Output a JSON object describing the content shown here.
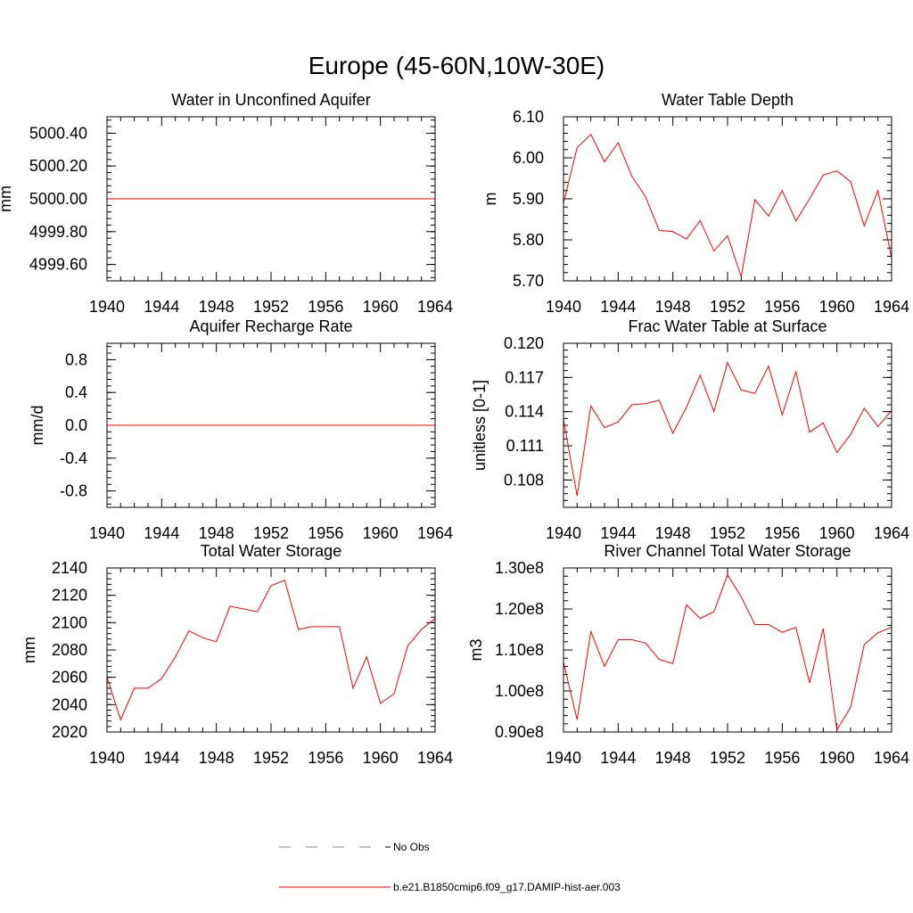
{
  "figure_title": "Europe (45-60N,10W-30E)",
  "legend": [
    {
      "label": "No Obs",
      "color": "#7f7fbf",
      "dash": true
    },
    {
      "label": "b.e21.B1850cmip6.f09_g17.DAMIP-hist-aer.003",
      "color": "#ff0000",
      "dash": false
    }
  ],
  "chart_data": [
    {
      "type": "line",
      "title": "Water in Unconfined Aquifer",
      "xlabel": "",
      "ylabel": "mm",
      "xlim": [
        1940,
        1964
      ],
      "ylim": [
        4999.5,
        5000.5
      ],
      "xticks": [
        1940,
        1944,
        1948,
        1952,
        1956,
        1960,
        1964
      ],
      "xtick_labels": [
        "1940",
        "1944",
        "1948",
        "1952",
        "1956",
        "1960",
        "1964"
      ],
      "yticks": [
        4999.6,
        4999.8,
        5000.0,
        5000.2,
        5000.4
      ],
      "ytick_labels": [
        "4999.60",
        "4999.80",
        "5000.00",
        "5000.20",
        "5000.40"
      ],
      "line_color": "#ff0000",
      "x": [
        1940,
        1964
      ],
      "y": [
        5000.0,
        5000.0
      ]
    },
    {
      "type": "line",
      "title": "Water Table Depth",
      "xlabel": "",
      "ylabel": "m",
      "xlim": [
        1940,
        1964
      ],
      "ylim": [
        5.7,
        6.1
      ],
      "xticks": [
        1940,
        1944,
        1948,
        1952,
        1956,
        1960,
        1964
      ],
      "xtick_labels": [
        "1940",
        "1944",
        "1948",
        "1952",
        "1956",
        "1960",
        "1964"
      ],
      "yticks": [
        5.7,
        5.8,
        5.9,
        6.0,
        6.1
      ],
      "ytick_labels": [
        "5.70",
        "5.80",
        "5.90",
        "6.00",
        "6.10"
      ],
      "line_color": "#ff0000",
      "x": [
        1940,
        1941,
        1942,
        1943,
        1944,
        1945,
        1946,
        1947,
        1948,
        1949,
        1950,
        1951,
        1952,
        1953,
        1954,
        1955,
        1956,
        1957,
        1958,
        1959,
        1960,
        1961,
        1962,
        1963,
        1964
      ],
      "y": [
        5.89,
        6.025,
        6.057,
        5.99,
        6.037,
        5.955,
        5.905,
        5.823,
        5.82,
        5.802,
        5.847,
        5.773,
        5.81,
        5.71,
        5.898,
        5.858,
        5.92,
        5.846,
        5.9,
        5.958,
        5.968,
        5.942,
        5.834,
        5.92,
        5.755
      ]
    },
    {
      "type": "line",
      "title": "Aquifer Recharge Rate",
      "xlabel": "",
      "ylabel": "mm/d",
      "xlim": [
        1940,
        1964
      ],
      "ylim": [
        -1.0,
        1.0
      ],
      "xticks": [
        1940,
        1944,
        1948,
        1952,
        1956,
        1960,
        1964
      ],
      "xtick_labels": [
        "1940",
        "1944",
        "1948",
        "1952",
        "1956",
        "1960",
        "1964"
      ],
      "yticks": [
        -0.8,
        -0.4,
        0.0,
        0.4,
        0.8
      ],
      "ytick_labels": [
        "-0.8",
        "-0.4",
        "0.0",
        "0.4",
        "0.8"
      ],
      "line_color": "#ff0000",
      "x": [
        1940,
        1964
      ],
      "y": [
        0.0,
        0.0
      ]
    },
    {
      "type": "line",
      "title": "Frac Water Table at Surface",
      "xlabel": "",
      "ylabel": "unitless [0-1]",
      "xlim": [
        1940,
        1964
      ],
      "ylim": [
        0.1056,
        0.12
      ],
      "xticks": [
        1940,
        1944,
        1948,
        1952,
        1956,
        1960,
        1964
      ],
      "xtick_labels": [
        "1940",
        "1944",
        "1948",
        "1952",
        "1956",
        "1960",
        "1964"
      ],
      "yticks": [
        0.108,
        0.111,
        0.114,
        0.117,
        0.12
      ],
      "ytick_labels": [
        "0.108",
        "0.111",
        "0.114",
        "0.117",
        "0.120"
      ],
      "line_color": "#ff0000",
      "x": [
        1940,
        1941,
        1942,
        1943,
        1944,
        1945,
        1946,
        1947,
        1948,
        1949,
        1950,
        1951,
        1952,
        1953,
        1954,
        1955,
        1956,
        1957,
        1958,
        1959,
        1960,
        1961,
        1962,
        1963,
        1964
      ],
      "y": [
        0.1133,
        0.1066,
        0.1145,
        0.1126,
        0.1131,
        0.1146,
        0.1147,
        0.115,
        0.1121,
        0.1144,
        0.1172,
        0.114,
        0.1183,
        0.1159,
        0.1156,
        0.118,
        0.1137,
        0.1175,
        0.1122,
        0.113,
        0.1104,
        0.112,
        0.1143,
        0.1127,
        0.1141
      ]
    },
    {
      "type": "line",
      "title": "Total Water Storage",
      "xlabel": "",
      "ylabel": "mm",
      "xlim": [
        1940,
        1964
      ],
      "ylim": [
        2020,
        2140
      ],
      "xticks": [
        1940,
        1944,
        1948,
        1952,
        1956,
        1960,
        1964
      ],
      "xtick_labels": [
        "1940",
        "1944",
        "1948",
        "1952",
        "1956",
        "1960",
        "1964"
      ],
      "yticks": [
        2020,
        2040,
        2060,
        2080,
        2100,
        2120,
        2140
      ],
      "ytick_labels": [
        "2020",
        "2040",
        "2060",
        "2080",
        "2100",
        "2120",
        "2140"
      ],
      "line_color": "#ff0000",
      "x": [
        1940,
        1941,
        1942,
        1943,
        1944,
        1945,
        1946,
        1947,
        1948,
        1949,
        1950,
        1951,
        1952,
        1953,
        1954,
        1955,
        1956,
        1957,
        1958,
        1959,
        1960,
        1961,
        1962,
        1963,
        1964
      ],
      "y": [
        2060,
        2029,
        2052,
        2052,
        2059,
        2075,
        2094,
        2089,
        2086,
        2112,
        2110,
        2108,
        2127,
        2131,
        2095,
        2097,
        2097,
        2097,
        2052,
        2075,
        2041,
        2048,
        2083,
        2095,
        2103
      ]
    },
    {
      "type": "line",
      "title": "River Channel Total Water Storage",
      "xlabel": "",
      "ylabel": "m3",
      "xlim": [
        1940,
        1964
      ],
      "ylim": [
        90000000.0,
        130000000.0
      ],
      "xticks": [
        1940,
        1944,
        1948,
        1952,
        1956,
        1960,
        1964
      ],
      "xtick_labels": [
        "1940",
        "1944",
        "1948",
        "1952",
        "1956",
        "1960",
        "1964"
      ],
      "yticks": [
        90000000.0,
        100000000.0,
        110000000.0,
        120000000.0,
        130000000.0
      ],
      "ytick_labels": [
        "0.90e8",
        "1.00e8",
        "1.10e8",
        "1.20e8",
        "1.30e8"
      ],
      "line_color": "#ff0000",
      "x": [
        1940,
        1941,
        1942,
        1943,
        1944,
        1945,
        1946,
        1947,
        1948,
        1949,
        1950,
        1951,
        1952,
        1953,
        1954,
        1955,
        1956,
        1957,
        1958,
        1959,
        1960,
        1961,
        1962,
        1963,
        1964
      ],
      "y": [
        107000000.0,
        93000000.0,
        114500000.0,
        106000000.0,
        112500000.0,
        112500000.0,
        111700000.0,
        107700000.0,
        106700000.0,
        121000000.0,
        117700000.0,
        119300000.0,
        128300000.0,
        123000000.0,
        116200000.0,
        116200000.0,
        114300000.0,
        115500000.0,
        102000000.0,
        115200000.0,
        90500000.0,
        96000000.0,
        111300000.0,
        114200000.0,
        115500000.0
      ]
    }
  ]
}
